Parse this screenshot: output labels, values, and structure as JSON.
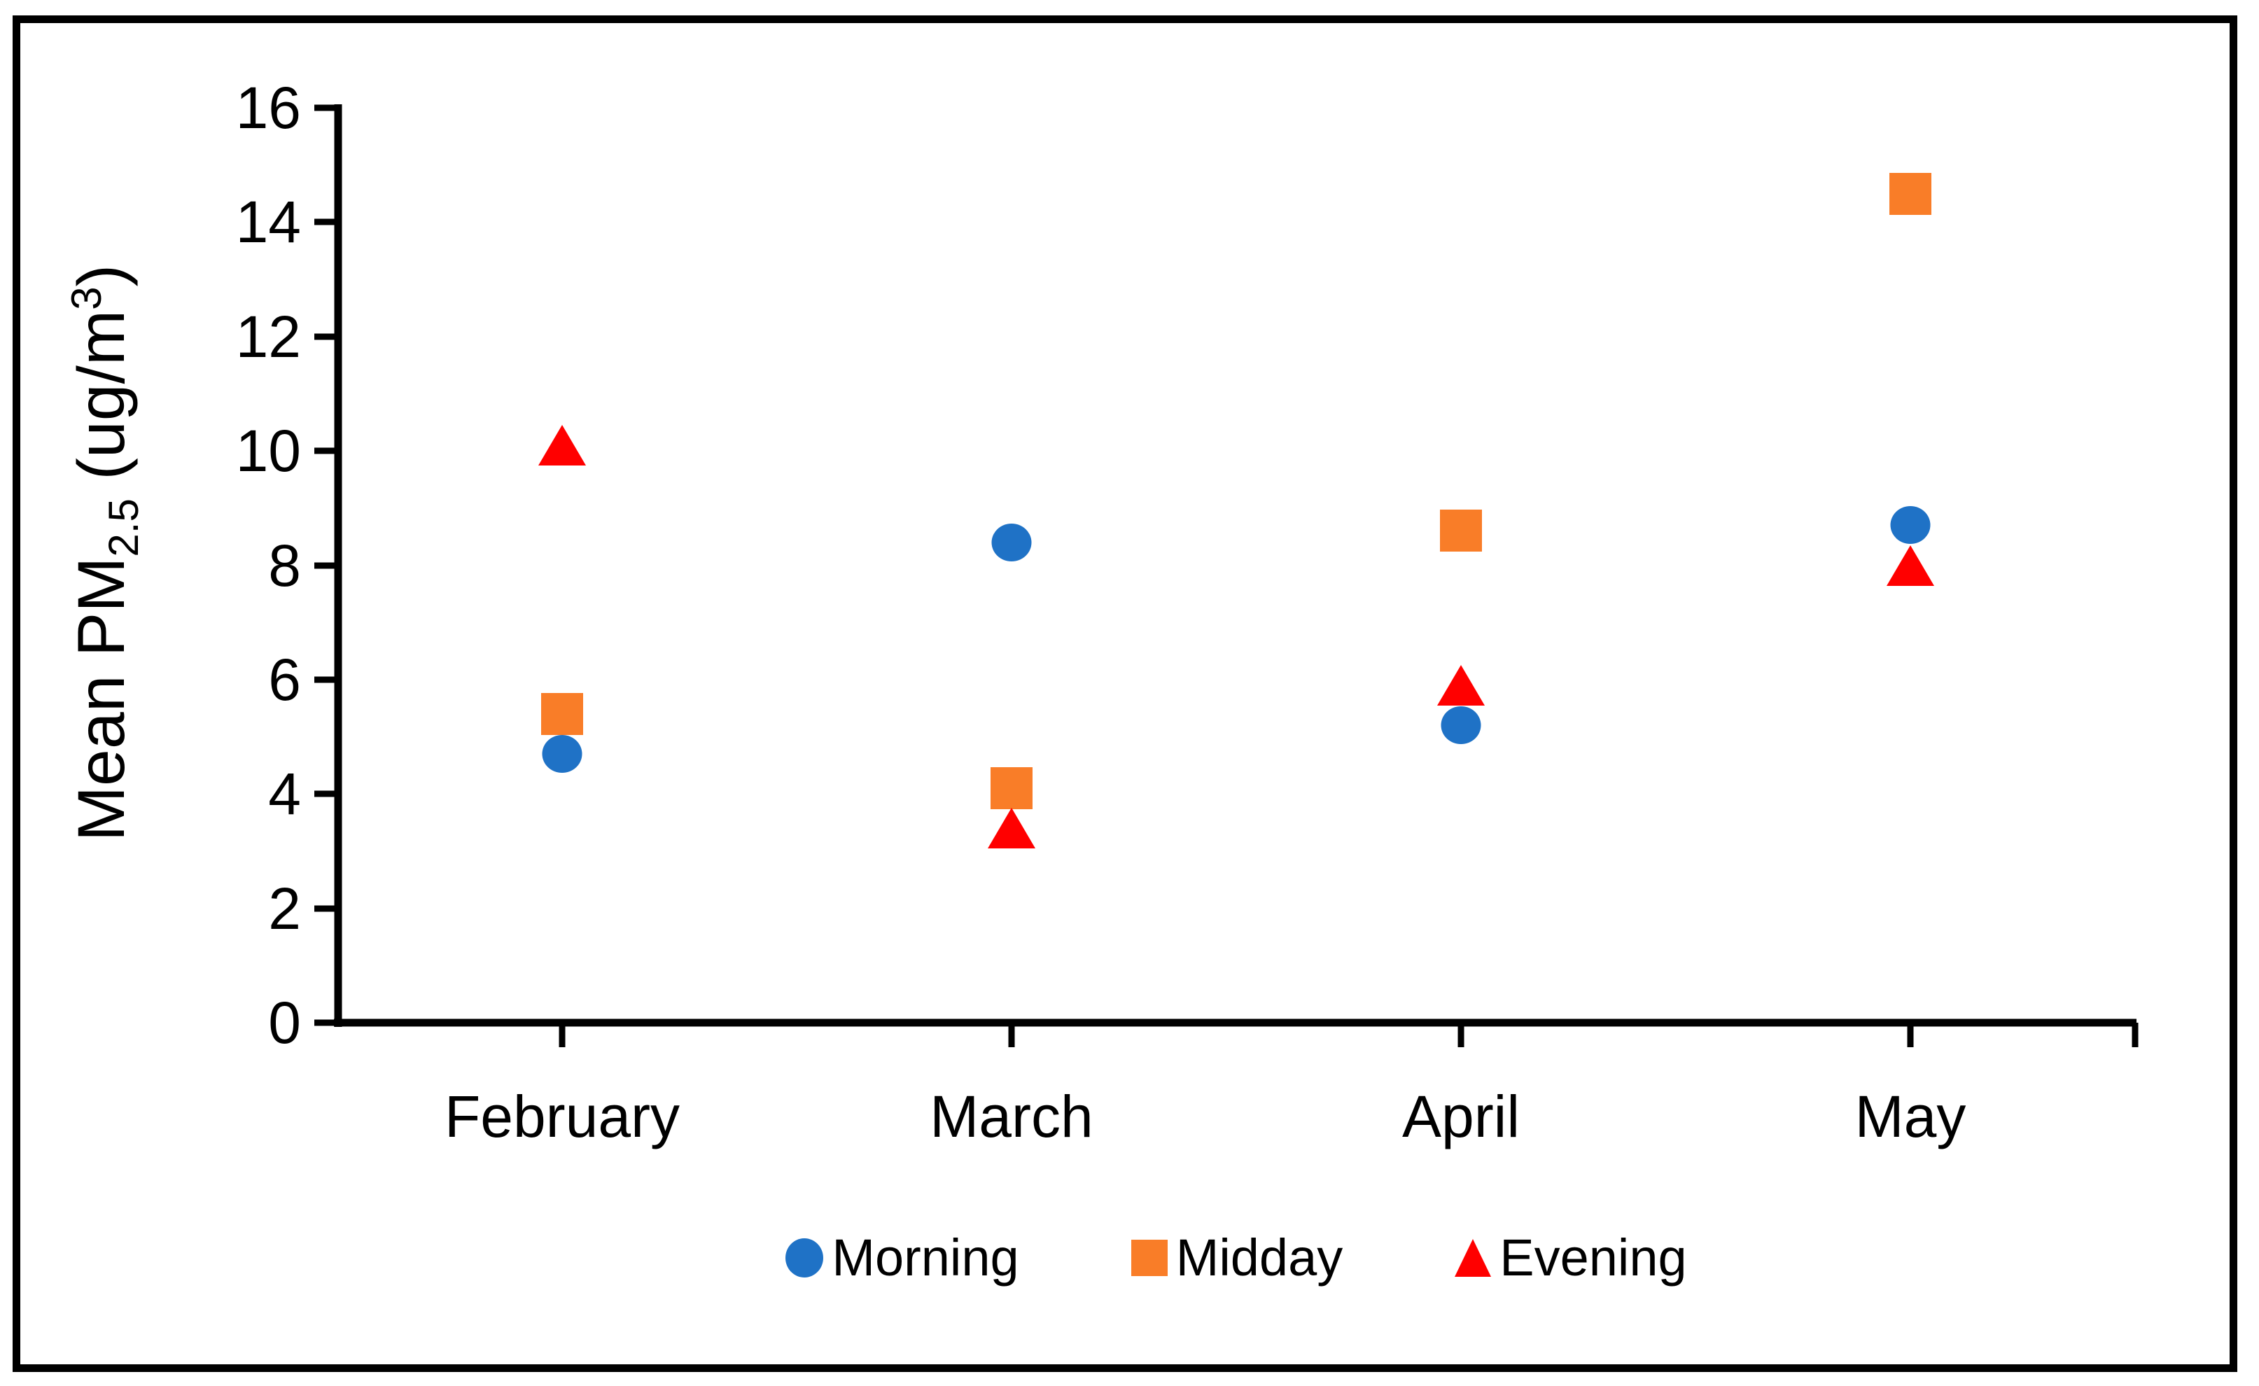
{
  "chart_data": {
    "type": "scatter",
    "title": "",
    "categories": [
      "February",
      "March",
      "April",
      "May"
    ],
    "series": [
      {
        "name": "Morning",
        "marker": "circle",
        "color": "#1F72C6",
        "values": [
          4.7,
          8.4,
          5.2,
          8.7
        ]
      },
      {
        "name": "Midday",
        "marker": "square",
        "color": "#F97D28",
        "values": [
          5.4,
          4.1,
          8.6,
          14.5
        ]
      },
      {
        "name": "Evening",
        "marker": "triangle",
        "color": "#FF0000",
        "values": [
          10.1,
          3.4,
          5.9,
          8.0
        ]
      }
    ],
    "ylabel": {
      "prefix": "Mean PM",
      "sub": "2.5",
      "mid": " (ug/m",
      "sup": "3",
      "suffix": ")"
    },
    "xlabel": "",
    "y_axis": {
      "min": 0,
      "max": 16,
      "step": 2,
      "tick_labels_top_to_bottom": [
        "16",
        "14",
        "12",
        "10",
        "8",
        "6",
        "4",
        "2",
        "0"
      ]
    },
    "grid": false,
    "legend_position": "bottom-center",
    "axis_color": "#000000",
    "background_color": "#FFFFFF",
    "frame_border_color": "#000000"
  }
}
